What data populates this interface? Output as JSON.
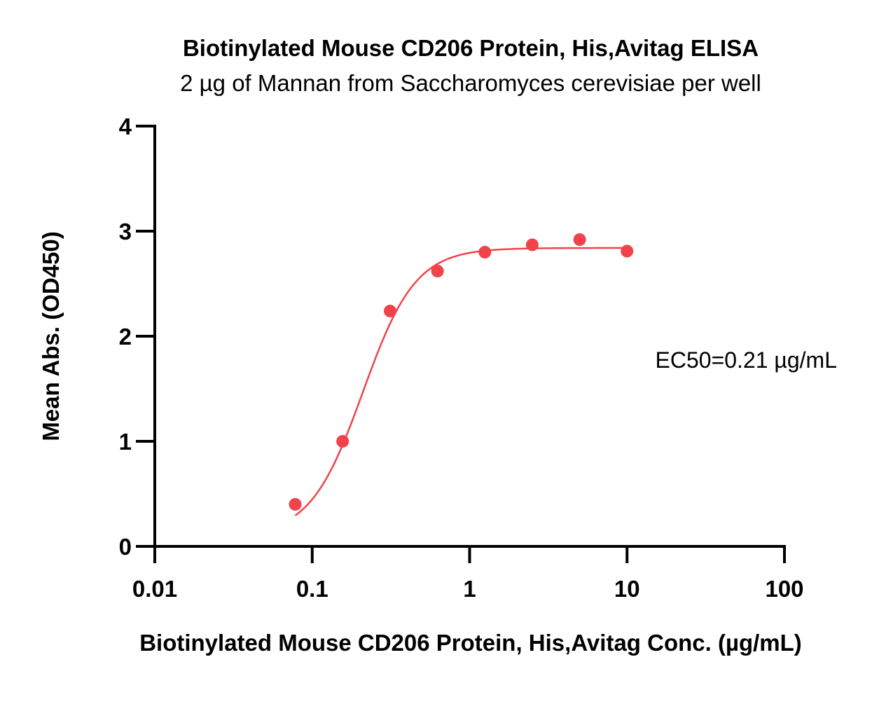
{
  "chart_data": {
    "type": "scatter",
    "title": "Biotinylated Mouse CD206 Protein, His,Avitag ELISA",
    "subtitle": "2 µg of Mannan from Saccharomyces cerevisiae per well",
    "xlabel": "Biotinylated Mouse CD206 Protein, His,Avitag Conc. (µg/mL)",
    "ylabel": "Mean Abs. (OD450)",
    "x_scale": "log",
    "xlim": [
      0.01,
      100
    ],
    "ylim": [
      0,
      4
    ],
    "x_ticks": [
      0.01,
      0.1,
      1,
      10,
      100
    ],
    "x_tick_labels": [
      "0.01",
      "0.1",
      "1",
      "10",
      "100"
    ],
    "y_ticks": [
      0,
      1,
      2,
      3,
      4
    ],
    "y_tick_labels": [
      "0",
      "1",
      "2",
      "3",
      "4"
    ],
    "grid": false,
    "legend": "none",
    "series": [
      {
        "color": "#f0434a",
        "x": [
          0.078,
          0.156,
          0.3125,
          0.625,
          1.25,
          2.5,
          5,
          10
        ],
        "y": [
          0.4,
          1.0,
          2.24,
          2.62,
          2.8,
          2.87,
          2.92,
          2.81
        ]
      }
    ],
    "fit_curve": {
      "color": "#f0434a",
      "model": "4PL",
      "bottom": 0.1,
      "top": 2.84,
      "ec50": 0.21,
      "hill": 2.6,
      "x_range": [
        0.078,
        10
      ]
    },
    "annotations": [
      {
        "text": "EC50=0.21 µg/mL"
      }
    ]
  }
}
